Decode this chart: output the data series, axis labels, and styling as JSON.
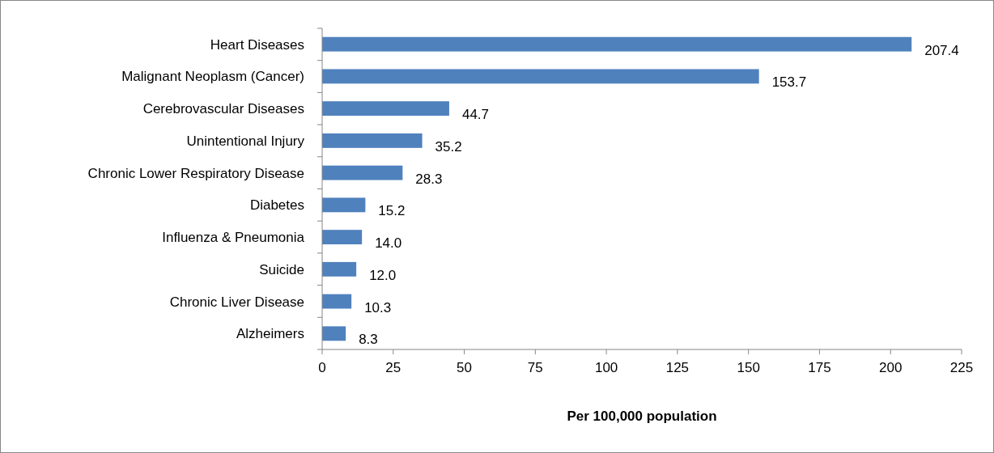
{
  "chart_data": {
    "type": "bar",
    "orientation": "horizontal",
    "xlabel": "Per 100,000 population",
    "categories": [
      "Heart Diseases",
      "Malignant Neoplasm (Cancer)",
      "Cerebrovascular Diseases",
      "Unintentional Injury",
      "Chronic Lower Respiratory Disease",
      "Diabetes",
      "Influenza & Pneumonia",
      "Suicide",
      "Chronic Liver Disease",
      "Alzheimers"
    ],
    "values": [
      207.4,
      153.7,
      44.7,
      35.2,
      28.3,
      15.2,
      14.0,
      12.0,
      10.3,
      8.3
    ],
    "value_labels": [
      "207.4",
      "153.7",
      "44.7",
      "35.2",
      "28.3",
      "15.2",
      "14.0",
      "12.0",
      "10.3",
      "8.3"
    ],
    "color": "#4f81bd",
    "xlim": [
      0,
      225
    ],
    "xticks": [
      0,
      25,
      50,
      75,
      100,
      125,
      150,
      175,
      200,
      225
    ]
  }
}
